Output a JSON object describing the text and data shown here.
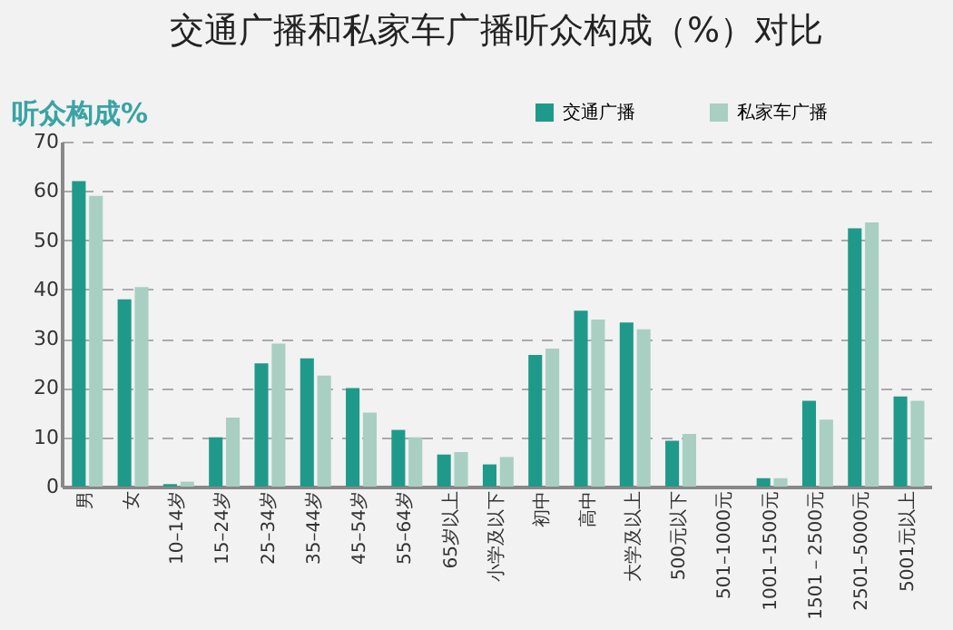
{
  "chart_data": {
    "type": "bar",
    "title": "交通广播和私家车广播听众构成（%）对比",
    "ylabel": "听众构成%",
    "categories": [
      "男",
      "女",
      "10–14岁",
      "15–24岁",
      "25–34岁",
      "35–44岁",
      "45–54岁",
      "55–64岁",
      "65岁以上",
      "小学及以下",
      "初中",
      "高中",
      "大学及以上",
      "500元以下",
      "501–1000元",
      "1001–1500元",
      "1501－2500元",
      "2501–5000元",
      "5001元以上"
    ],
    "series": [
      {
        "name": "交通广播",
        "color": "#1f9a8a",
        "values": [
          62,
          38,
          0.5,
          10,
          25,
          26,
          20,
          11.5,
          6.5,
          4.5,
          26.7,
          35.7,
          33.3,
          9.3,
          0,
          1.7,
          17.4,
          52.4,
          18.3
        ]
      },
      {
        "name": "私家车广播",
        "color": "#a8cfc2",
        "values": [
          59,
          40.5,
          1,
          14,
          29,
          22.5,
          15,
          10,
          7,
          6,
          28,
          33.9,
          31.9,
          10.7,
          0,
          1.7,
          13.6,
          53.6,
          17.4
        ]
      }
    ],
    "ylim": [
      0,
      70
    ],
    "yticks": [
      0,
      10,
      20,
      30,
      40,
      50,
      60,
      70
    ],
    "grid": "y",
    "legend": "top right"
  }
}
